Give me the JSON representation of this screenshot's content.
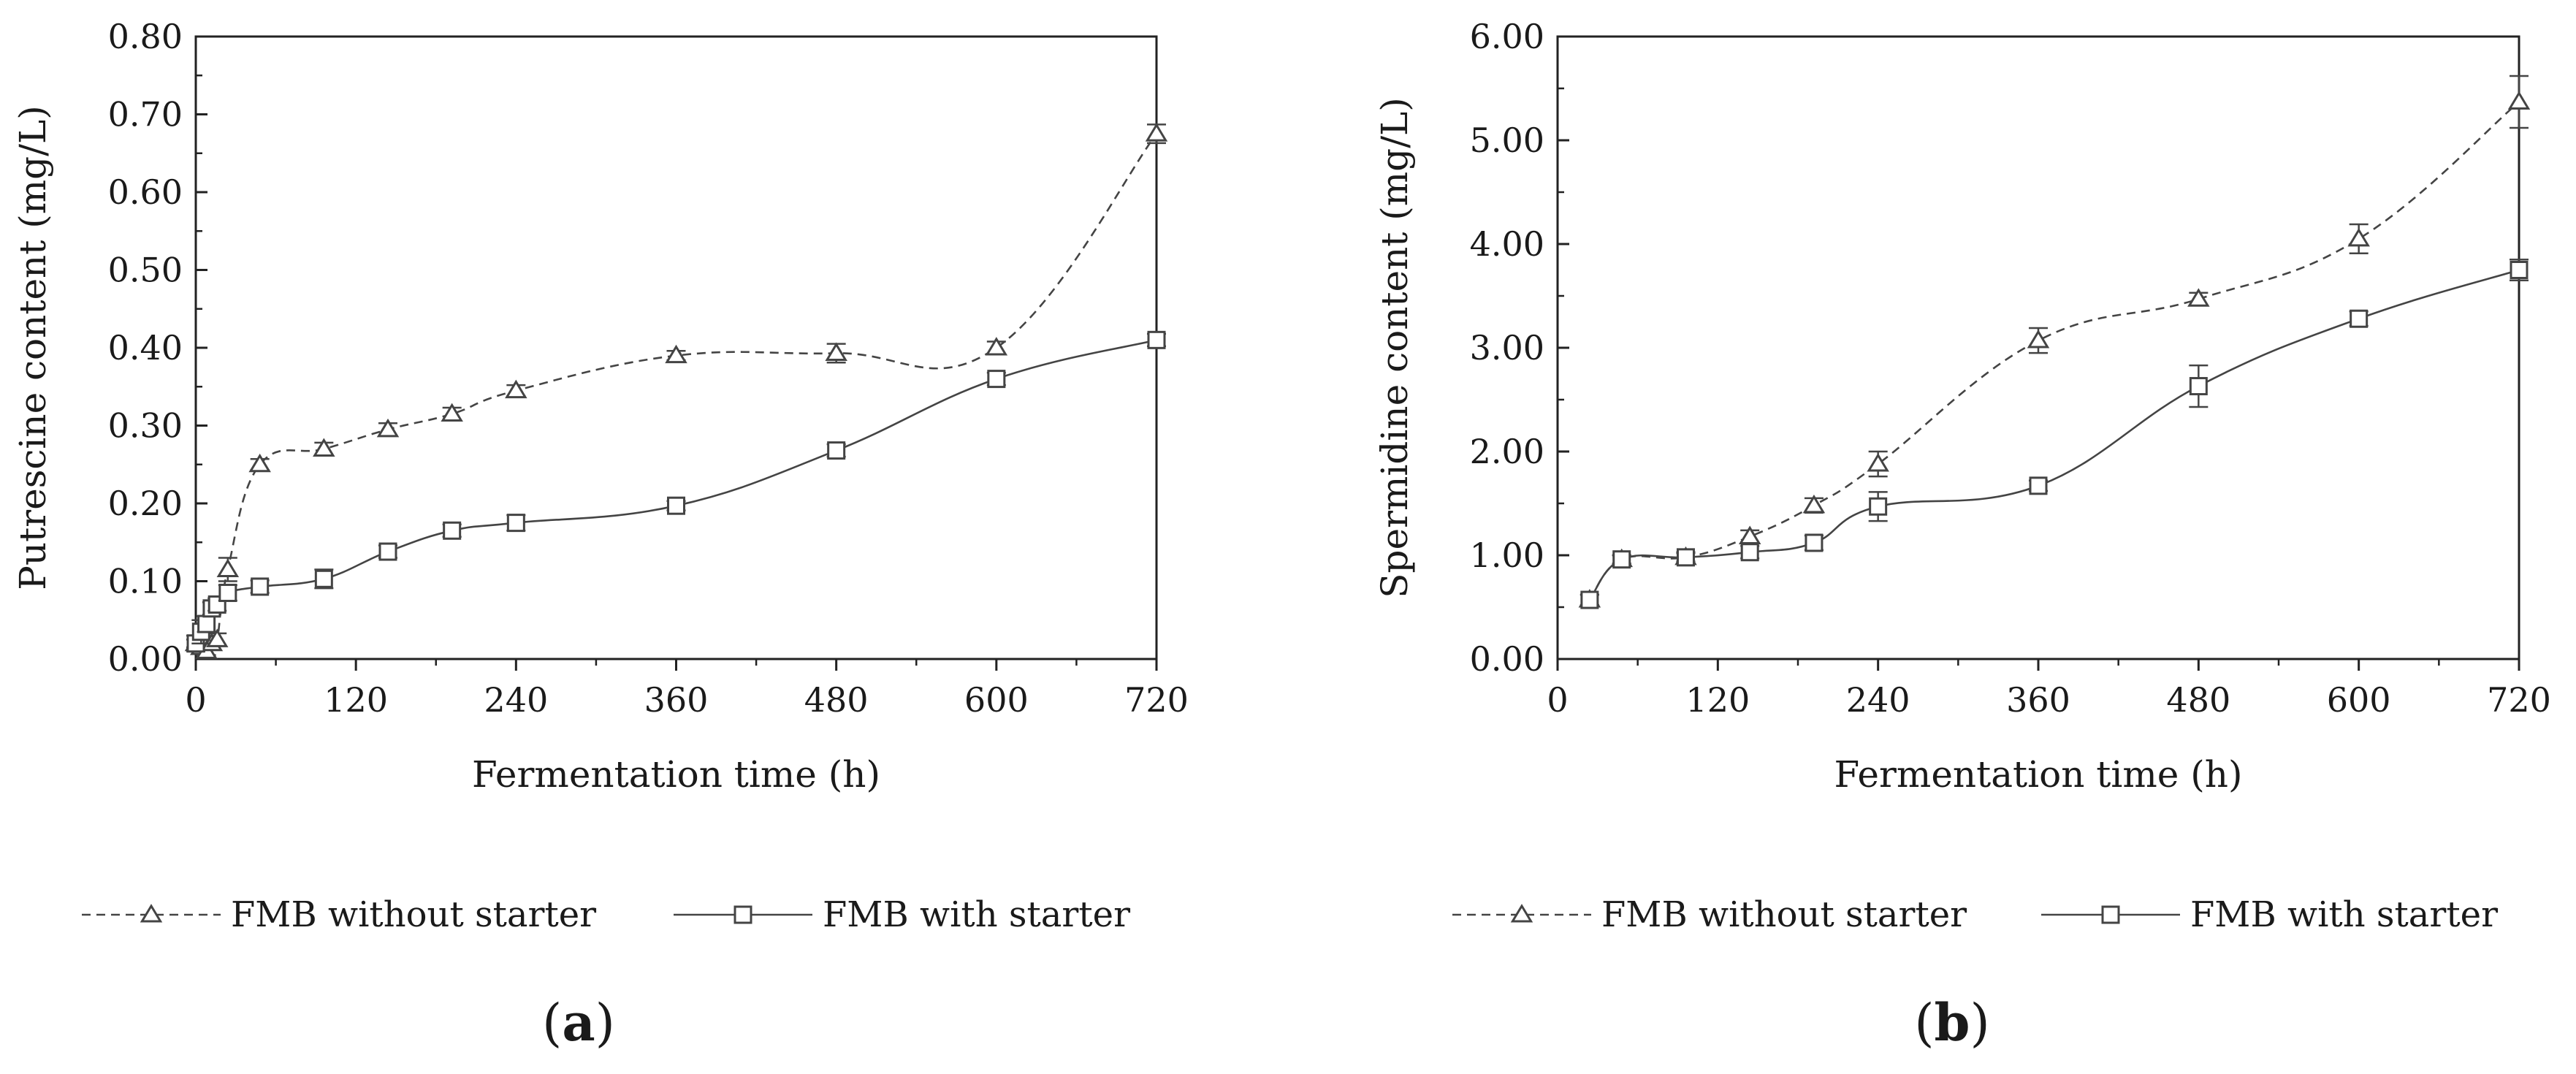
{
  "chart_data": [
    {
      "type": "line",
      "panel_label": "a",
      "xlabel": "Fermentation time (h)",
      "ylabel": "Putrescine content (mg/L)",
      "xlim": [
        0,
        720
      ],
      "ylim": [
        0,
        0.8
      ],
      "x_ticks": [
        "0",
        "120",
        "240",
        "360",
        "480",
        "600",
        "720"
      ],
      "y_ticks": [
        "0.00",
        "0.10",
        "0.20",
        "0.30",
        "0.40",
        "0.50",
        "0.60",
        "0.70",
        "0.80"
      ],
      "grid": false,
      "legend_position": "bottom",
      "series": [
        {
          "name": "FMB without starter",
          "marker": "triangle",
          "line_style": "dashed",
          "x": [
            0,
            4,
            8,
            12,
            16,
            24,
            48,
            96,
            144,
            192,
            240,
            360,
            480,
            600,
            720
          ],
          "y": [
            0.02,
            0.015,
            0.01,
            0.02,
            0.025,
            0.115,
            0.25,
            0.27,
            0.295,
            0.315,
            0.345,
            0.39,
            0.393,
            0.4,
            0.675
          ],
          "err": [
            0.005,
            0.005,
            0.005,
            0.008,
            0.008,
            0.015,
            0.007,
            0.008,
            0.008,
            0.008,
            0.007,
            0.006,
            0.012,
            0.008,
            0.012
          ]
        },
        {
          "name": "FMB with starter",
          "marker": "square",
          "line_style": "solid",
          "x": [
            0,
            4,
            8,
            12,
            16,
            24,
            48,
            96,
            144,
            192,
            240,
            360,
            480,
            600,
            720
          ],
          "y": [
            0.02,
            0.035,
            0.045,
            0.065,
            0.07,
            0.085,
            0.093,
            0.103,
            0.138,
            0.165,
            0.175,
            0.197,
            0.268,
            0.36,
            0.41
          ],
          "err": [
            0.01,
            0.015,
            0.01,
            0.008,
            0.008,
            0.01,
            0.008,
            0.012,
            0.008,
            0.008,
            0.01,
            0.006,
            0.008,
            0.008,
            0.008
          ]
        }
      ]
    },
    {
      "type": "line",
      "panel_label": "b",
      "xlabel": "Fermentation time (h)",
      "ylabel": "Spermidine content (mg/L)",
      "xlim": [
        0,
        720
      ],
      "ylim": [
        0,
        6
      ],
      "x_ticks": [
        "0",
        "120",
        "240",
        "360",
        "480",
        "600",
        "720"
      ],
      "y_ticks": [
        "0.00",
        "1.00",
        "2.00",
        "3.00",
        "4.00",
        "5.00",
        "6.00"
      ],
      "grid": false,
      "legend_position": "bottom",
      "series": [
        {
          "name": "FMB without starter",
          "marker": "triangle",
          "line_style": "dashed",
          "x": [
            24,
            48,
            96,
            144,
            192,
            240,
            360,
            480,
            600,
            720
          ],
          "y": [
            0.57,
            0.96,
            0.98,
            1.18,
            1.48,
            1.88,
            3.07,
            3.47,
            4.05,
            5.37
          ],
          "err": [
            0.05,
            0.04,
            0.04,
            0.06,
            0.07,
            0.12,
            0.12,
            0.06,
            0.14,
            0.25
          ]
        },
        {
          "name": "FMB with starter",
          "marker": "square",
          "line_style": "solid",
          "x": [
            24,
            48,
            96,
            144,
            192,
            240,
            360,
            480,
            600,
            720
          ],
          "y": [
            0.57,
            0.96,
            0.98,
            1.03,
            1.12,
            1.47,
            1.67,
            2.63,
            3.28,
            3.75
          ],
          "err": [
            0.05,
            0.04,
            0.05,
            0.06,
            0.07,
            0.14,
            0.05,
            0.2,
            0.07,
            0.1
          ]
        }
      ]
    }
  ]
}
